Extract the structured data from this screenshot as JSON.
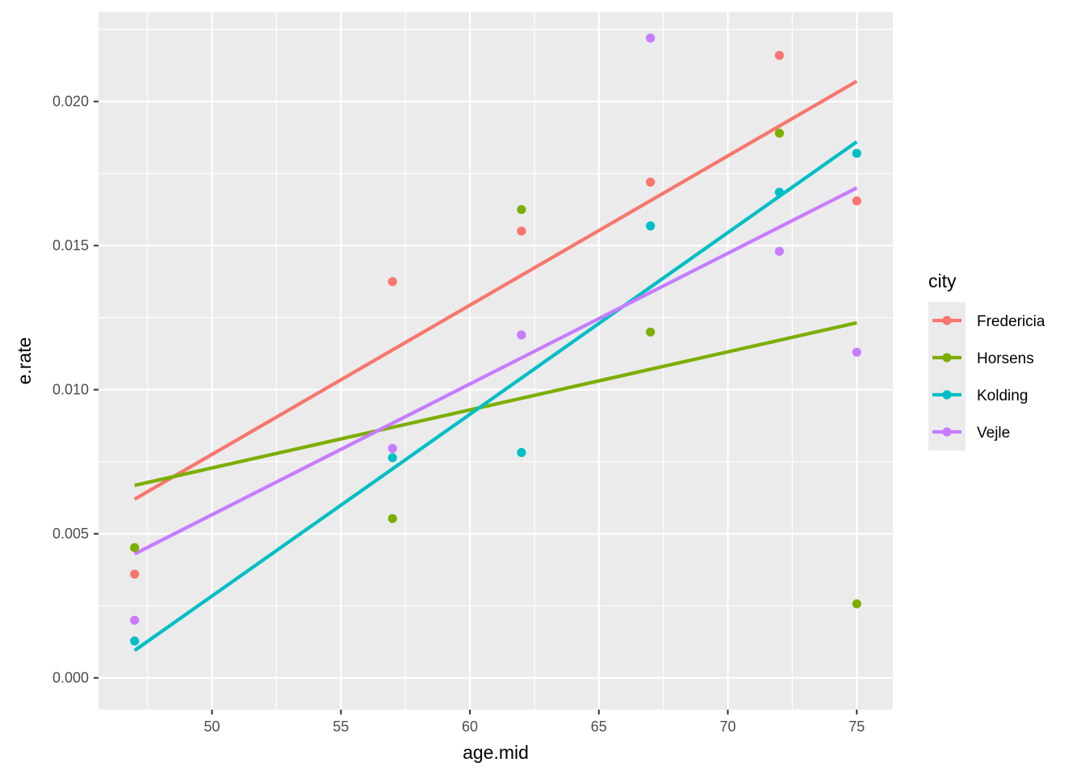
{
  "chart_data": {
    "type": "scatter",
    "xlabel": "age.mid",
    "ylabel": "e.rate",
    "xlim": [
      45.6,
      76.4
    ],
    "ylim": [
      -0.0011,
      0.0231
    ],
    "x_ticks": [
      50,
      55,
      60,
      65,
      70,
      75
    ],
    "x_tick_labels": [
      "50",
      "55",
      "60",
      "65",
      "70",
      "75"
    ],
    "y_ticks": [
      0,
      0.005,
      0.01,
      0.015,
      0.02
    ],
    "y_tick_labels": [
      "0.000",
      "0.005",
      "0.010",
      "0.015",
      "0.020"
    ],
    "grid": true,
    "legend": {
      "title": "city",
      "placement": "right"
    },
    "series": [
      {
        "name": "Fredericia",
        "color": "#F8766D",
        "x": [
          47,
          57,
          62,
          67,
          72,
          75
        ],
        "y": [
          0.0036,
          0.01375,
          0.0155,
          0.0172,
          0.0216,
          0.01655
        ],
        "fit": [
          [
            47,
            0.0062
          ],
          [
            75,
            0.0207
          ]
        ]
      },
      {
        "name": "Horsens",
        "color": "#7CAE00",
        "x": [
          47,
          57,
          62,
          67,
          72,
          75
        ],
        "y": [
          0.00452,
          0.00553,
          0.01625,
          0.012,
          0.0189,
          0.00257
        ],
        "fit": [
          [
            47,
            0.00668
          ],
          [
            75,
            0.01232
          ]
        ]
      },
      {
        "name": "Kolding",
        "color": "#00BFC4",
        "x": [
          47,
          57,
          62,
          67,
          72,
          75
        ],
        "y": [
          0.00128,
          0.00764,
          0.00782,
          0.01568,
          0.01685,
          0.0182
        ],
        "fit": [
          [
            47,
            0.00095
          ],
          [
            75,
            0.0186
          ]
        ]
      },
      {
        "name": "Vejle",
        "color": "#C77CFF",
        "x": [
          47,
          57,
          62,
          67,
          72,
          75
        ],
        "y": [
          0.002,
          0.00796,
          0.0119,
          0.0222,
          0.0148,
          0.0113
        ],
        "fit": [
          [
            47,
            0.0043
          ],
          [
            75,
            0.017
          ]
        ]
      }
    ]
  }
}
